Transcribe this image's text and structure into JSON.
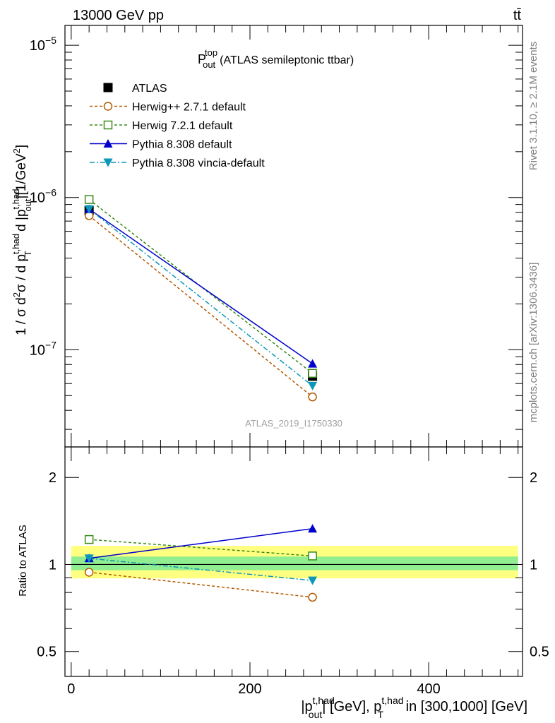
{
  "header": {
    "left": "13000 GeV pp",
    "right": "tt̄"
  },
  "side_text": {
    "top": "Rivet 3.1.10, ≥ 2.1M events",
    "bottom": "mcplots.cern.ch [arXiv:1306.3436]"
  },
  "chart_data": [
    {
      "type": "line",
      "panel": "main",
      "title": "P",
      "title_sup": "top",
      "title_sub": "out",
      "title_rest": "(ATLAS semileptonic ttbar)",
      "analysis_label": "ATLAS_2019_I1750330",
      "ylabel": "1 / σ d²σ / d pT t,had d |pout t,had| [1/GeV²]",
      "ylabel_parts": {
        "a": "1 / σ d",
        "a_sup": "2",
        "b": "σ / d p",
        "b_sup": "t,had",
        "b_sub": "T",
        "c": " d |p",
        "c_sup": "t,had",
        "c_sub": "out",
        "d": "|[1/GeV",
        "d_sup": "2",
        "e": "]"
      },
      "yscale": "log",
      "ylim": [
        2.3e-08,
        1.35e-05
      ],
      "xlim": [
        -7,
        505
      ],
      "y_ticks": [
        {
          "base": "10",
          "exp": "−5",
          "value": 1e-05
        },
        {
          "base": "10",
          "exp": "−6",
          "value": 1e-06
        },
        {
          "base": "10",
          "exp": "−7",
          "value": 1e-07
        }
      ],
      "series": [
        {
          "name": "ATLAS",
          "x": [
            20,
            270
          ],
          "y": [
            8.2e-07,
            6.7e-08
          ],
          "color": "#000000",
          "marker": "filled-square",
          "dash": "none",
          "line": false
        },
        {
          "name": "Herwig++ 2.7.1 default",
          "x": [
            20,
            270
          ],
          "y": [
            7.6e-07,
            4.9e-08
          ],
          "color": "#b35900",
          "marker": "open-circle",
          "dash": "4,3",
          "line": true
        },
        {
          "name": "Herwig 7.2.1 default",
          "x": [
            20,
            270
          ],
          "y": [
            9.7e-07,
            7e-08
          ],
          "color": "#3a8a17",
          "marker": "open-square",
          "dash": "4,3",
          "line": true
        },
        {
          "name": "Pythia 8.308 default",
          "x": [
            20,
            270
          ],
          "y": [
            8.4e-07,
            8.1e-08
          ],
          "color": "#0000cc",
          "marker": "filled-triangle-up",
          "dash": "none",
          "line": true
        },
        {
          "name": "Pythia 8.308 vincia-default",
          "x": [
            20,
            270
          ],
          "y": [
            8.4e-07,
            5.8e-08
          ],
          "color": "#0b97b8",
          "marker": "filled-triangle-down",
          "dash": "7,3,2,3",
          "line": true
        }
      ]
    },
    {
      "type": "line",
      "panel": "ratio",
      "ylabel": "Ratio to ATLAS",
      "xlabel": "|pout t,had| [GeV], pT t,had in [300,1000] [GeV]",
      "xlabel_parts": {
        "a": "|p",
        "a_sup": "t,had",
        "a_sub": "out",
        "b": "| [GeV], p",
        "b_sup": "t,had",
        "b_sub": "T",
        "c": " in [300,1000] [GeV]"
      },
      "yscale": "log",
      "ylim": [
        0.41,
        2.55
      ],
      "xlim": [
        -7,
        505
      ],
      "y_ticks": [
        {
          "label": "2",
          "value": 2
        },
        {
          "label": "1",
          "value": 1
        },
        {
          "label": "0.5",
          "value": 0.5
        }
      ],
      "x_ticks": [
        {
          "label": "0",
          "value": 0
        },
        {
          "label": "200",
          "value": 200
        },
        {
          "label": "400",
          "value": 400
        }
      ],
      "bands": [
        {
          "name": "ATLAS total uncertainty",
          "low": 0.895,
          "high": 1.16,
          "color": "#ffff80"
        },
        {
          "name": "ATLAS stat uncertainty",
          "low": 0.955,
          "high": 1.065,
          "color": "#90ee90"
        }
      ],
      "series": [
        {
          "name": "Herwig++ 2.7.1 default",
          "x": [
            20,
            270
          ],
          "y": [
            0.94,
            0.77
          ],
          "color": "#b35900",
          "marker": "open-circle",
          "dash": "4,3",
          "line": true
        },
        {
          "name": "Herwig 7.2.1 default",
          "x": [
            20,
            270
          ],
          "y": [
            1.22,
            1.07
          ],
          "color": "#3a8a17",
          "marker": "open-square",
          "dash": "4,3",
          "line": true
        },
        {
          "name": "Pythia 8.308 default",
          "x": [
            20,
            270
          ],
          "y": [
            1.05,
            1.33
          ],
          "color": "#0000cc",
          "marker": "filled-triangle-up",
          "dash": "none",
          "line": true
        },
        {
          "name": "Pythia 8.308 vincia-default",
          "x": [
            20,
            270
          ],
          "y": [
            1.05,
            0.88
          ],
          "color": "#0b97b8",
          "marker": "filled-triangle-down",
          "dash": "7,3,2,3",
          "line": true
        }
      ]
    }
  ]
}
